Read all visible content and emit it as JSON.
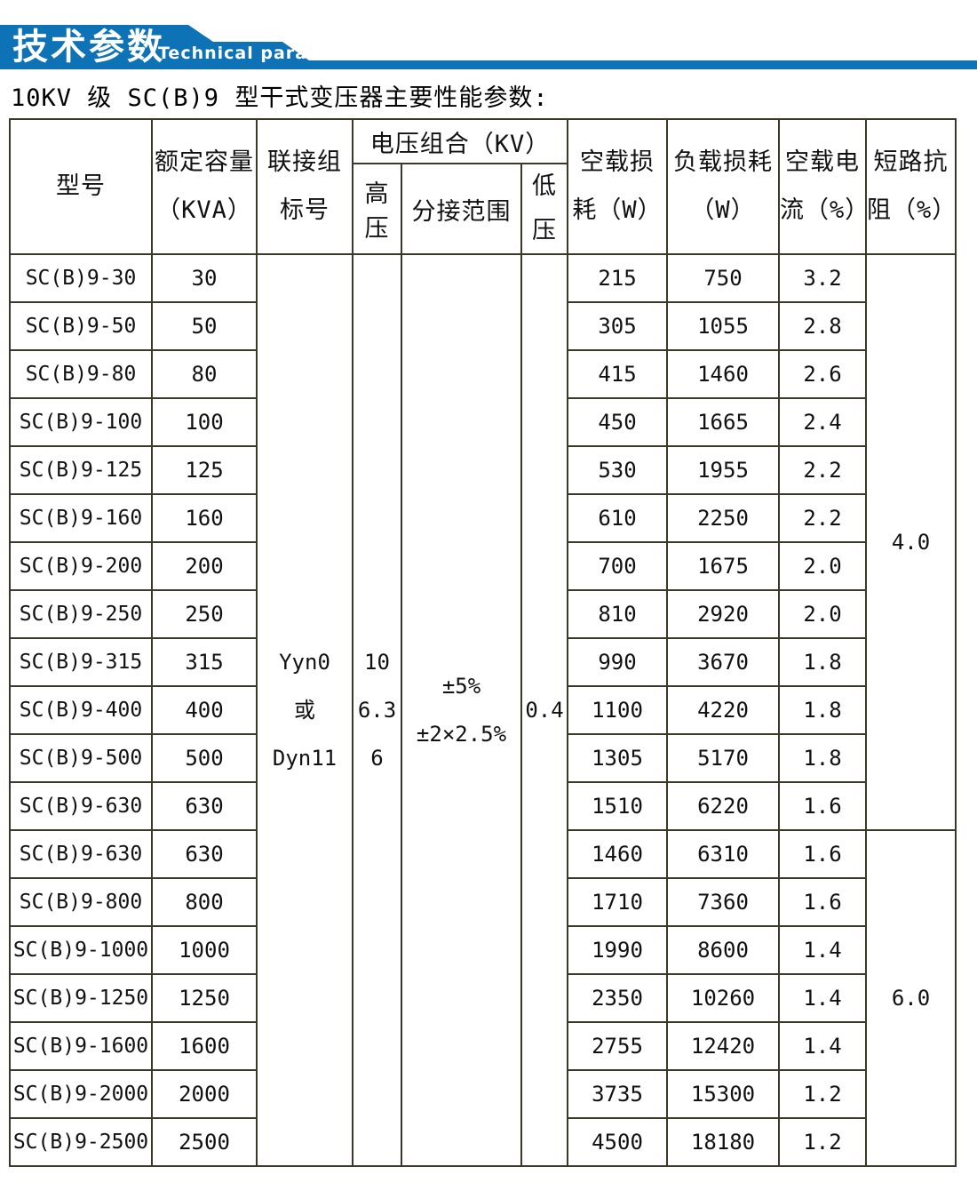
{
  "banner": {
    "title_cn": "技术参数",
    "title_en": "Technical parameter",
    "color": "#0e72b6"
  },
  "subtitle": "10KV 级 SC(B)9 型干式变压器主要性能参数:",
  "colors": {
    "banner_blue": "#0e72b6",
    "table_border": "#3a3828",
    "text": "#111111"
  },
  "table": {
    "headers": {
      "model": "型号",
      "capacity_l1": "额定容量",
      "capacity_l2": "（KVA）",
      "connection_l1": "联接组",
      "connection_l2": "标号",
      "voltage_group": "电压组合（KV）",
      "hv": "高压",
      "tap": "分接范围",
      "lv_l1": "低",
      "lv_l2": "压",
      "noload_l1": "空载损",
      "noload_l2": "耗（W）",
      "load_l1": "负载损耗",
      "load_l2": "（W）",
      "current_l1": "空载电",
      "current_l2": "流（%）",
      "impedance_l1": "短路抗",
      "impedance_l2": "阻（%）"
    },
    "merged": {
      "connection_lines": [
        "Yyn0",
        "或",
        "Dyn11"
      ],
      "hv_lines": [
        "10",
        "6.3",
        "6"
      ],
      "tap_lines": [
        "±5%",
        "±2×2.5%"
      ],
      "lv": "0.4",
      "impedance_groups": [
        {
          "rows": 12,
          "value": "4.0"
        },
        {
          "rows": 7,
          "value": "6.0"
        }
      ]
    },
    "rows": [
      {
        "model": "SC(B)9-30",
        "kva": "30",
        "noload": "215",
        "load": "750",
        "current": "3.2"
      },
      {
        "model": "SC(B)9-50",
        "kva": "50",
        "noload": "305",
        "load": "1055",
        "current": "2.8"
      },
      {
        "model": "SC(B)9-80",
        "kva": "80",
        "noload": "415",
        "load": "1460",
        "current": "2.6"
      },
      {
        "model": "SC(B)9-100",
        "kva": "100",
        "noload": "450",
        "load": "1665",
        "current": "2.4"
      },
      {
        "model": "SC(B)9-125",
        "kva": "125",
        "noload": "530",
        "load": "1955",
        "current": "2.2"
      },
      {
        "model": "SC(B)9-160",
        "kva": "160",
        "noload": "610",
        "load": "2250",
        "current": "2.2"
      },
      {
        "model": "SC(B)9-200",
        "kva": "200",
        "noload": "700",
        "load": "1675",
        "current": "2.0"
      },
      {
        "model": "SC(B)9-250",
        "kva": "250",
        "noload": "810",
        "load": "2920",
        "current": "2.0"
      },
      {
        "model": "SC(B)9-315",
        "kva": "315",
        "noload": "990",
        "load": "3670",
        "current": "1.8"
      },
      {
        "model": "SC(B)9-400",
        "kva": "400",
        "noload": "1100",
        "load": "4220",
        "current": "1.8"
      },
      {
        "model": "SC(B)9-500",
        "kva": "500",
        "noload": "1305",
        "load": "5170",
        "current": "1.8"
      },
      {
        "model": "SC(B)9-630",
        "kva": "630",
        "noload": "1510",
        "load": "6220",
        "current": "1.6"
      },
      {
        "model": "SC(B)9-630",
        "kva": "630",
        "noload": "1460",
        "load": "6310",
        "current": "1.6"
      },
      {
        "model": "SC(B)9-800",
        "kva": "800",
        "noload": "1710",
        "load": "7360",
        "current": "1.6"
      },
      {
        "model": "SC(B)9-1000",
        "kva": "1000",
        "noload": "1990",
        "load": "8600",
        "current": "1.4"
      },
      {
        "model": "SC(B)9-1250",
        "kva": "1250",
        "noload": "2350",
        "load": "10260",
        "current": "1.4"
      },
      {
        "model": "SC(B)9-1600",
        "kva": "1600",
        "noload": "2755",
        "load": "12420",
        "current": "1.4"
      },
      {
        "model": "SC(B)9-2000",
        "kva": "2000",
        "noload": "3735",
        "load": "15300",
        "current": "1.2"
      },
      {
        "model": "SC(B)9-2500",
        "kva": "2500",
        "noload": "4500",
        "load": "18180",
        "current": "1.2"
      }
    ]
  }
}
